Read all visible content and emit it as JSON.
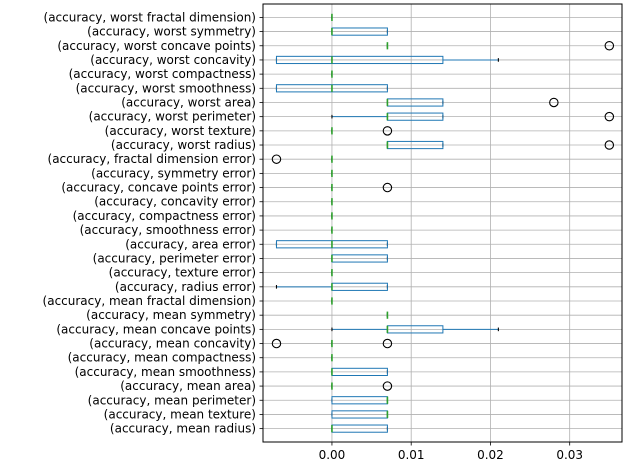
{
  "chart_data": {
    "type": "boxplot",
    "orientation": "horizontal",
    "grid": true,
    "xlim": [
      -0.0087,
      0.0366
    ],
    "x_ticks": [
      {
        "value": 0.0,
        "label": "0.00"
      },
      {
        "value": 0.01,
        "label": "0.01"
      },
      {
        "value": 0.02,
        "label": "0.02"
      },
      {
        "value": 0.03,
        "label": "0.03"
      }
    ],
    "colors": {
      "box": "#1f77b4",
      "median": "#2ca02c",
      "grid": "#b0b0b0",
      "axes": "#000000"
    },
    "categories": [
      "(accuracy, worst fractal dimension)",
      "(accuracy, worst symmetry)",
      "(accuracy, worst concave points)",
      "(accuracy, worst concavity)",
      "(accuracy, worst compactness)",
      "(accuracy, worst smoothness)",
      "(accuracy, worst area)",
      "(accuracy, worst perimeter)",
      "(accuracy, worst texture)",
      "(accuracy, worst radius)",
      "(accuracy, fractal dimension error)",
      "(accuracy, symmetry error)",
      "(accuracy, concave points error)",
      "(accuracy, concavity error)",
      "(accuracy, compactness error)",
      "(accuracy, smoothness error)",
      "(accuracy, area error)",
      "(accuracy, perimeter error)",
      "(accuracy, texture error)",
      "(accuracy, radius error)",
      "(accuracy, mean fractal dimension)",
      "(accuracy, mean symmetry)",
      "(accuracy, mean concave points)",
      "(accuracy, mean concavity)",
      "(accuracy, mean compactness)",
      "(accuracy, mean smoothness)",
      "(accuracy, mean area)",
      "(accuracy, mean perimeter)",
      "(accuracy, mean texture)",
      "(accuracy, mean radius)"
    ],
    "boxes": [
      {
        "wlo": 0.0,
        "q1": 0.0,
        "med": 0.0,
        "q3": 0.0,
        "whi": 0.0,
        "outliers": []
      },
      {
        "wlo": 0.0,
        "q1": 0.0,
        "med": 0.0,
        "q3": 0.007,
        "whi": 0.007,
        "outliers": []
      },
      {
        "wlo": 0.007,
        "q1": 0.007,
        "med": 0.007,
        "q3": 0.007,
        "whi": 0.007,
        "outliers": [
          0.035
        ]
      },
      {
        "wlo": -0.007,
        "q1": -0.007,
        "med": 0.0,
        "q3": 0.014,
        "whi": 0.021,
        "outliers": []
      },
      {
        "wlo": 0.0,
        "q1": 0.0,
        "med": 0.0,
        "q3": 0.0,
        "whi": 0.0,
        "outliers": []
      },
      {
        "wlo": -0.007,
        "q1": -0.007,
        "med": 0.0,
        "q3": 0.007,
        "whi": 0.007,
        "outliers": []
      },
      {
        "wlo": 0.007,
        "q1": 0.007,
        "med": 0.007,
        "q3": 0.014,
        "whi": 0.014,
        "outliers": [
          0.028
        ]
      },
      {
        "wlo": 0.0,
        "q1": 0.007,
        "med": 0.007,
        "q3": 0.014,
        "whi": 0.014,
        "outliers": [
          0.035
        ]
      },
      {
        "wlo": 0.0,
        "q1": 0.0,
        "med": 0.0,
        "q3": 0.0,
        "whi": 0.0,
        "outliers": [
          0.007
        ]
      },
      {
        "wlo": 0.007,
        "q1": 0.007,
        "med": 0.007,
        "q3": 0.014,
        "whi": 0.014,
        "outliers": [
          0.035
        ]
      },
      {
        "wlo": 0.0,
        "q1": 0.0,
        "med": 0.0,
        "q3": 0.0,
        "whi": 0.0,
        "outliers": [
          -0.007
        ]
      },
      {
        "wlo": 0.0,
        "q1": 0.0,
        "med": 0.0,
        "q3": 0.0,
        "whi": 0.0,
        "outliers": []
      },
      {
        "wlo": 0.0,
        "q1": 0.0,
        "med": 0.0,
        "q3": 0.0,
        "whi": 0.0,
        "outliers": [
          0.007
        ]
      },
      {
        "wlo": 0.0,
        "q1": 0.0,
        "med": 0.0,
        "q3": 0.0,
        "whi": 0.0,
        "outliers": []
      },
      {
        "wlo": 0.0,
        "q1": 0.0,
        "med": 0.0,
        "q3": 0.0,
        "whi": 0.0,
        "outliers": []
      },
      {
        "wlo": 0.0,
        "q1": 0.0,
        "med": 0.0,
        "q3": 0.0,
        "whi": 0.0,
        "outliers": []
      },
      {
        "wlo": -0.007,
        "q1": -0.007,
        "med": 0.0,
        "q3": 0.007,
        "whi": 0.007,
        "outliers": []
      },
      {
        "wlo": 0.0,
        "q1": 0.0,
        "med": 0.0,
        "q3": 0.007,
        "whi": 0.007,
        "outliers": []
      },
      {
        "wlo": 0.0,
        "q1": 0.0,
        "med": 0.0,
        "q3": 0.0,
        "whi": 0.0,
        "outliers": []
      },
      {
        "wlo": -0.007,
        "q1": 0.0,
        "med": 0.0,
        "q3": 0.007,
        "whi": 0.007,
        "outliers": []
      },
      {
        "wlo": 0.0,
        "q1": 0.0,
        "med": 0.0,
        "q3": 0.0,
        "whi": 0.0,
        "outliers": []
      },
      {
        "wlo": 0.007,
        "q1": 0.007,
        "med": 0.007,
        "q3": 0.007,
        "whi": 0.007,
        "outliers": []
      },
      {
        "wlo": 0.0,
        "q1": 0.007,
        "med": 0.007,
        "q3": 0.014,
        "whi": 0.021,
        "outliers": []
      },
      {
        "wlo": 0.0,
        "q1": 0.0,
        "med": 0.0,
        "q3": 0.0,
        "whi": 0.0,
        "outliers": [
          -0.007,
          0.007
        ]
      },
      {
        "wlo": 0.0,
        "q1": 0.0,
        "med": 0.0,
        "q3": 0.0,
        "whi": 0.0,
        "outliers": []
      },
      {
        "wlo": 0.0,
        "q1": 0.0,
        "med": 0.0,
        "q3": 0.007,
        "whi": 0.007,
        "outliers": []
      },
      {
        "wlo": 0.0,
        "q1": 0.0,
        "med": 0.0,
        "q3": 0.0,
        "whi": 0.0,
        "outliers": [
          0.007
        ]
      },
      {
        "wlo": 0.0,
        "q1": 0.0,
        "med": 0.007,
        "q3": 0.007,
        "whi": 0.007,
        "outliers": []
      },
      {
        "wlo": 0.0,
        "q1": 0.0,
        "med": 0.007,
        "q3": 0.007,
        "whi": 0.007,
        "outliers": []
      },
      {
        "wlo": 0.0,
        "q1": 0.0,
        "med": 0.0,
        "q3": 0.007,
        "whi": 0.007,
        "outliers": []
      }
    ]
  }
}
